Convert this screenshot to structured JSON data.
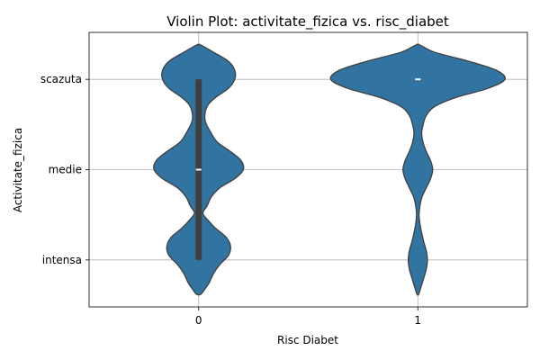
{
  "chart_data": {
    "type": "violin",
    "title": "Violin Plot: activitate_fizica vs. risc_diabet",
    "xlabel": "Risc Diabet",
    "ylabel": "Activitate_fizica",
    "categories": [
      "0",
      "1"
    ],
    "y_categories": [
      "scazuta",
      "medie",
      "intensa"
    ],
    "y_values": [
      0,
      1,
      2
    ],
    "ylim": [
      -0.52,
      2.52
    ],
    "grid": true,
    "violin_color": "#3274a1",
    "edge_color": "#3f3f3f",
    "box_color": "#3f3f3f",
    "median_color": "#ffffff",
    "violins": [
      {
        "category": "0",
        "density": [
          [
            -0.38,
            0.01
          ],
          [
            -0.3,
            0.07
          ],
          [
            -0.2,
            0.14
          ],
          [
            -0.1,
            0.17
          ],
          [
            0.0,
            0.17
          ],
          [
            0.1,
            0.14
          ],
          [
            0.2,
            0.08
          ],
          [
            0.3,
            0.04
          ],
          [
            0.45,
            0.03
          ],
          [
            0.6,
            0.06
          ],
          [
            0.7,
            0.09
          ],
          [
            0.8,
            0.15
          ],
          [
            0.9,
            0.2
          ],
          [
            1.0,
            0.21
          ],
          [
            1.1,
            0.17
          ],
          [
            1.2,
            0.1
          ],
          [
            1.3,
            0.06
          ],
          [
            1.4,
            0.04
          ],
          [
            1.48,
            0.02
          ],
          [
            1.55,
            0.04
          ],
          [
            1.65,
            0.08
          ],
          [
            1.75,
            0.13
          ],
          [
            1.85,
            0.15
          ],
          [
            1.95,
            0.14
          ],
          [
            2.05,
            0.1
          ],
          [
            2.15,
            0.07
          ],
          [
            2.25,
            0.05
          ],
          [
            2.32,
            0.03
          ],
          [
            2.38,
            0.01
          ]
        ],
        "box": {
          "q1": 0.0,
          "median": 1.0,
          "q3": 2.0
        }
      },
      {
        "category": "1",
        "density": [
          [
            -0.38,
            0.01
          ],
          [
            -0.3,
            0.08
          ],
          [
            -0.2,
            0.24
          ],
          [
            -0.1,
            0.37
          ],
          [
            0.0,
            0.41
          ],
          [
            0.1,
            0.33
          ],
          [
            0.2,
            0.18
          ],
          [
            0.3,
            0.08
          ],
          [
            0.4,
            0.04
          ],
          [
            0.5,
            0.025
          ],
          [
            0.6,
            0.018
          ],
          [
            0.7,
            0.025
          ],
          [
            0.8,
            0.04
          ],
          [
            0.9,
            0.06
          ],
          [
            1.0,
            0.07
          ],
          [
            1.1,
            0.06
          ],
          [
            1.2,
            0.04
          ],
          [
            1.3,
            0.02
          ],
          [
            1.4,
            0.01
          ],
          [
            1.5,
            0.006
          ],
          [
            1.6,
            0.01
          ],
          [
            1.7,
            0.018
          ],
          [
            1.8,
            0.028
          ],
          [
            1.9,
            0.04
          ],
          [
            2.0,
            0.045
          ],
          [
            2.1,
            0.04
          ],
          [
            2.2,
            0.028
          ],
          [
            2.3,
            0.015
          ],
          [
            2.38,
            0.004
          ]
        ],
        "box": {
          "q1": 0.0,
          "median": 0.0,
          "q3": 0.0
        }
      }
    ]
  }
}
